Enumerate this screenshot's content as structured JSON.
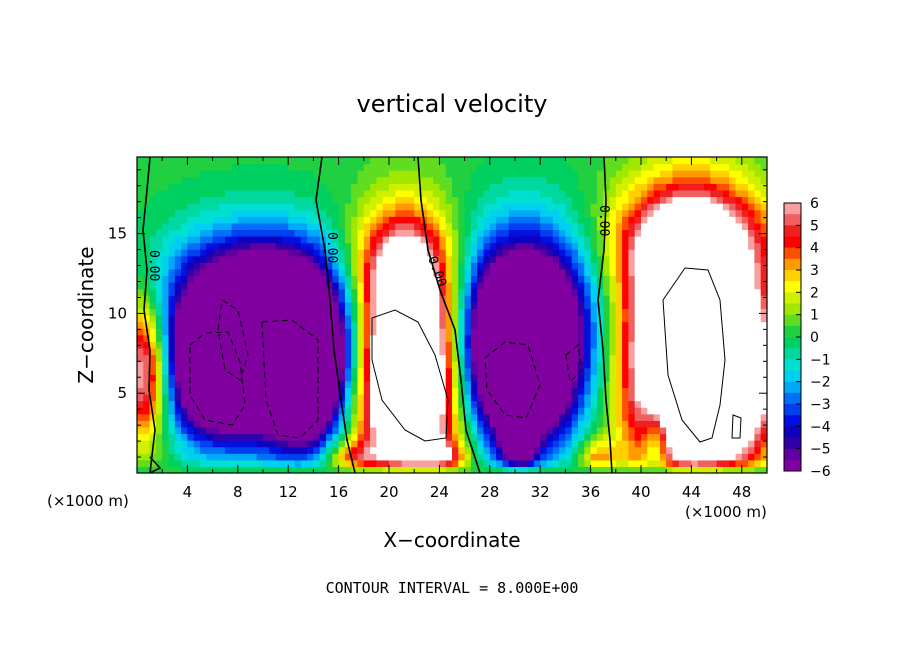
{
  "chart_data": {
    "type": "heatmap",
    "title": "vertical velocity",
    "xlabel": "X−coordinate",
    "ylabel": "Z−coordinate",
    "x_unit_left": "(×1000 m)",
    "x_unit_right": "(×1000 m)",
    "footer": "CONTOUR INTERVAL = 8.000E+00",
    "contour_label": "0.00",
    "xlim": [
      0,
      50
    ],
    "ylim": [
      0,
      19.8
    ],
    "x_ticks": [
      4,
      8,
      12,
      16,
      20,
      24,
      28,
      32,
      36,
      40,
      44,
      48
    ],
    "y_ticks": [
      5,
      10,
      15
    ],
    "colorbar": {
      "ticks": [
        "6",
        "5",
        "4",
        "3",
        "2",
        "1",
        "0",
        "−1",
        "−2",
        "−3",
        "−4",
        "−5",
        "−6"
      ],
      "levels": [
        {
          "lo": 5.5,
          "color": "#f8a0a0"
        },
        {
          "lo": 5.0,
          "color": "#f06060"
        },
        {
          "lo": 4.5,
          "color": "#f02020"
        },
        {
          "lo": 4.0,
          "color": "#ff0000"
        },
        {
          "lo": 3.5,
          "color": "#ff5000"
        },
        {
          "lo": 3.0,
          "color": "#ff9a00"
        },
        {
          "lo": 2.5,
          "color": "#ffd000"
        },
        {
          "lo": 2.0,
          "color": "#ffff00"
        },
        {
          "lo": 1.5,
          "color": "#d0f000"
        },
        {
          "lo": 1.0,
          "color": "#a0e800"
        },
        {
          "lo": 0.5,
          "color": "#60dd20"
        },
        {
          "lo": 0.0,
          "color": "#20d040"
        },
        {
          "lo": -0.5,
          "color": "#00d060"
        },
        {
          "lo": -1.0,
          "color": "#00d8a0"
        },
        {
          "lo": -1.5,
          "color": "#00e0d0"
        },
        {
          "lo": -2.0,
          "color": "#00d0f0"
        },
        {
          "lo": -2.5,
          "color": "#00a8f8"
        },
        {
          "lo": -3.0,
          "color": "#0070f8"
        },
        {
          "lo": -3.5,
          "color": "#0040f0"
        },
        {
          "lo": -4.0,
          "color": "#0010e0"
        },
        {
          "lo": -4.5,
          "color": "#1000c0"
        },
        {
          "lo": -5.0,
          "color": "#3000a8"
        },
        {
          "lo": -5.5,
          "color": "#6000a0"
        },
        {
          "lo": -99,
          "color": "#8000a0"
        }
      ]
    },
    "features": [
      {
        "x": 10.5,
        "z": 7.5,
        "amp": -14,
        "sx": 4.2,
        "sz": 3.4
      },
      {
        "x": 5.5,
        "z": 6.5,
        "amp": -6,
        "sx": 2.2,
        "sz": 3.0
      },
      {
        "x": 13.5,
        "z": 6.0,
        "amp": -6,
        "sx": 2.0,
        "sz": 3.2
      },
      {
        "x": 9.5,
        "z": 11.5,
        "amp": -5,
        "sx": 5.0,
        "sz": 3.0
      },
      {
        "x": 30.5,
        "z": 7.0,
        "amp": -13,
        "sx": 3.3,
        "sz": 3.6
      },
      {
        "x": 31.0,
        "z": 11.5,
        "amp": -5,
        "sx": 4.0,
        "sz": 3.5
      },
      {
        "x": 30.3,
        "z": 2.0,
        "amp": -5,
        "sx": 1.0,
        "sz": 2.0
      },
      {
        "x": 21.5,
        "z": 6.5,
        "amp": 14,
        "sx": 2.8,
        "sz": 5.0
      },
      {
        "x": 21.0,
        "z": 13.0,
        "amp": 4,
        "sx": 2.8,
        "sz": 2.5
      },
      {
        "x": 44.0,
        "z": 7.5,
        "amp": 15,
        "sx": 3.5,
        "sz": 5.5
      },
      {
        "x": 44.0,
        "z": 14.5,
        "amp": 5,
        "sx": 4.5,
        "sz": 2.5
      },
      {
        "x": 0.6,
        "z": 6.5,
        "amp": 7,
        "sx": 1.3,
        "sz": 3.0
      },
      {
        "x": 48.5,
        "z": 6.0,
        "amp": 5,
        "sx": 1.6,
        "sz": 3.0
      },
      {
        "x": 41.3,
        "z": 2.0,
        "amp": -4,
        "sx": 0.8,
        "sz": 1.8
      },
      {
        "x": 24.5,
        "z": 1.0,
        "amp": 3,
        "sx": 1.2,
        "sz": 0.8
      },
      {
        "x": 36.5,
        "z": 1.0,
        "amp": 3,
        "sx": 1.0,
        "sz": 0.8
      },
      {
        "x": 17.0,
        "z": 1.0,
        "amp": 3,
        "sx": 1.4,
        "sz": 0.8
      }
    ]
  }
}
